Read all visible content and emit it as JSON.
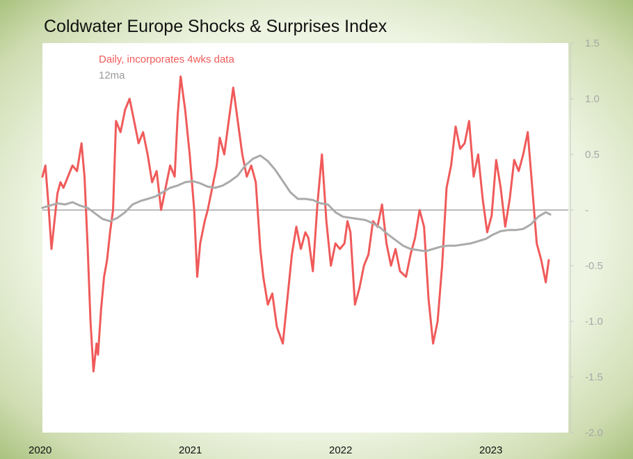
{
  "chart_data": {
    "type": "line",
    "title": "Coldwater Europe Shocks & Surprises Index",
    "xlabel": "",
    "ylabel": "",
    "ylim": [
      -2.0,
      1.5
    ],
    "xlim": [
      2020.0,
      2023.5
    ],
    "y_ticks": [
      1.5,
      1.0,
      0.5,
      0,
      -0.5,
      -1.0,
      -1.5,
      -2.0
    ],
    "y_tick_labels": [
      "1.5",
      "1.0",
      "0.5",
      "-",
      "-0.5",
      "-1.0",
      "-1.5",
      "-2.0"
    ],
    "x_ticks": [
      2020,
      2021,
      2022,
      2023
    ],
    "x_tick_labels": [
      "2020",
      "2021",
      "2022",
      "2023"
    ],
    "grid": false,
    "legend_position": "top-left",
    "series": [
      {
        "name": "Daily, incorporates 4wks data",
        "color": "#f05a5a",
        "x": [
          2020.0,
          2020.02,
          2020.04,
          2020.06,
          2020.08,
          2020.1,
          2020.12,
          2020.14,
          2020.17,
          2020.2,
          2020.23,
          2020.26,
          2020.28,
          2020.3,
          2020.32,
          2020.34,
          2020.36,
          2020.37,
          2020.39,
          2020.41,
          2020.43,
          2020.45,
          2020.47,
          2020.49,
          2020.52,
          2020.55,
          2020.58,
          2020.61,
          2020.64,
          2020.67,
          2020.7,
          2020.73,
          2020.76,
          2020.79,
          2020.82,
          2020.85,
          2020.88,
          2020.9,
          2020.92,
          2020.95,
          2020.98,
          2021.01,
          2021.03,
          2021.05,
          2021.08,
          2021.1,
          2021.13,
          2021.16,
          2021.18,
          2021.21,
          2021.24,
          2021.27,
          2021.3,
          2021.33,
          2021.36,
          2021.39,
          2021.42,
          2021.45,
          2021.47,
          2021.5,
          2021.53,
          2021.56,
          2021.6,
          2021.63,
          2021.66,
          2021.69,
          2021.72,
          2021.75,
          2021.77,
          2021.8,
          2021.83,
          2021.86,
          2021.89,
          2021.92,
          2021.95,
          2021.98,
          2022.01,
          2022.03,
          2022.05,
          2022.08,
          2022.11,
          2022.14,
          2022.17,
          2022.2,
          2022.23,
          2022.26,
          2022.29,
          2022.32,
          2022.35,
          2022.38,
          2022.42,
          2022.45,
          2022.48,
          2022.51,
          2022.54,
          2022.57,
          2022.6,
          2022.63,
          2022.66,
          2022.69,
          2022.72,
          2022.75,
          2022.78,
          2022.81,
          2022.84,
          2022.87,
          2022.9,
          2022.93,
          2022.96,
          2022.99,
          2023.02,
          2023.05,
          2023.08,
          2023.11,
          2023.14,
          2023.17,
          2023.2,
          2023.23,
          2023.26,
          2023.29,
          2023.32,
          2023.35,
          2023.37
        ],
        "y": [
          0.3,
          0.4,
          0.05,
          -0.35,
          -0.1,
          0.15,
          0.25,
          0.2,
          0.3,
          0.4,
          0.35,
          0.6,
          0.3,
          -0.3,
          -1.0,
          -1.45,
          -1.2,
          -1.3,
          -0.9,
          -0.6,
          -0.45,
          -0.2,
          0.0,
          0.8,
          0.7,
          0.9,
          1.0,
          0.8,
          0.6,
          0.7,
          0.5,
          0.25,
          0.35,
          0.0,
          0.2,
          0.4,
          0.3,
          0.85,
          1.2,
          0.9,
          0.5,
          0.0,
          -0.6,
          -0.3,
          -0.1,
          0.0,
          0.2,
          0.4,
          0.65,
          0.5,
          0.8,
          1.1,
          0.8,
          0.5,
          0.3,
          0.4,
          0.25,
          -0.35,
          -0.6,
          -0.85,
          -0.75,
          -1.05,
          -1.2,
          -0.8,
          -0.4,
          -0.15,
          -0.35,
          -0.2,
          -0.25,
          -0.55,
          0.05,
          0.5,
          -0.1,
          -0.5,
          -0.3,
          -0.35,
          -0.3,
          -0.1,
          -0.2,
          -0.85,
          -0.7,
          -0.5,
          -0.4,
          -0.1,
          -0.15,
          0.05,
          -0.3,
          -0.5,
          -0.35,
          -0.55,
          -0.6,
          -0.4,
          -0.25,
          0.0,
          -0.15,
          -0.8,
          -1.2,
          -1.0,
          -0.5,
          0.2,
          0.4,
          0.75,
          0.55,
          0.6,
          0.8,
          0.3,
          0.5,
          0.1,
          -0.2,
          -0.05,
          0.45,
          0.2,
          -0.15,
          0.1,
          0.45,
          0.35,
          0.5,
          0.7,
          0.2,
          -0.3,
          -0.45,
          -0.65,
          -0.45
        ]
      },
      {
        "name": "12ma",
        "color": "#aaaaaa",
        "x": [
          2020.0,
          2020.05,
          2020.1,
          2020.15,
          2020.2,
          2020.25,
          2020.3,
          2020.35,
          2020.4,
          2020.45,
          2020.5,
          2020.55,
          2020.6,
          2020.65,
          2020.7,
          2020.75,
          2020.8,
          2020.85,
          2020.9,
          2020.95,
          2021.0,
          2021.05,
          2021.1,
          2021.15,
          2021.2,
          2021.25,
          2021.3,
          2021.35,
          2021.4,
          2021.45,
          2021.5,
          2021.55,
          2021.6,
          2021.65,
          2021.7,
          2021.75,
          2021.8,
          2021.85,
          2021.9,
          2021.95,
          2022.0,
          2022.05,
          2022.1,
          2022.15,
          2022.2,
          2022.25,
          2022.3,
          2022.35,
          2022.4,
          2022.45,
          2022.5,
          2022.55,
          2022.6,
          2022.65,
          2022.7,
          2022.75,
          2022.8,
          2022.85,
          2022.9,
          2022.95,
          2023.0,
          2023.05,
          2023.1,
          2023.15,
          2023.2,
          2023.25,
          2023.3,
          2023.35,
          2023.38
        ],
        "y": [
          0.02,
          0.04,
          0.06,
          0.05,
          0.07,
          0.04,
          0.02,
          -0.03,
          -0.08,
          -0.1,
          -0.07,
          -0.02,
          0.05,
          0.08,
          0.1,
          0.12,
          0.16,
          0.2,
          0.22,
          0.25,
          0.26,
          0.24,
          0.21,
          0.2,
          0.22,
          0.26,
          0.31,
          0.4,
          0.46,
          0.49,
          0.44,
          0.36,
          0.26,
          0.16,
          0.1,
          0.1,
          0.09,
          0.06,
          0.05,
          -0.02,
          -0.06,
          -0.07,
          -0.08,
          -0.09,
          -0.12,
          -0.16,
          -0.22,
          -0.27,
          -0.32,
          -0.35,
          -0.36,
          -0.37,
          -0.35,
          -0.33,
          -0.32,
          -0.32,
          -0.31,
          -0.3,
          -0.28,
          -0.26,
          -0.22,
          -0.19,
          -0.18,
          -0.18,
          -0.17,
          -0.13,
          -0.06,
          -0.02,
          -0.04
        ]
      }
    ]
  }
}
